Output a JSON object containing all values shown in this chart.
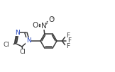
{
  "bg_color": "#ffffff",
  "bond_color": "#3a3a3a",
  "n_color": "#2244bb",
  "line_width": 1.1,
  "font_size": 6.5,
  "fig_width": 1.62,
  "fig_height": 1.02,
  "xlim": [
    0.0,
    1.62
  ],
  "ylim": [
    0.0,
    1.02
  ]
}
